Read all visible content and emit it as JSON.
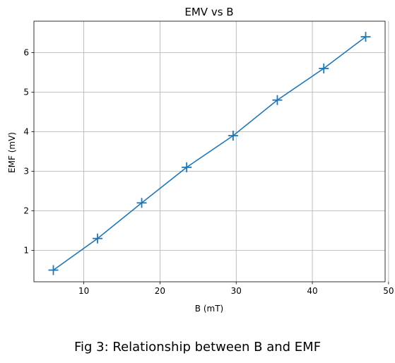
{
  "caption": "Fig 3: Relationship between B and EMF",
  "chart_data": {
    "type": "line",
    "title": "EMV vs B",
    "xlabel": "B (mT)",
    "ylabel": "EMF (mV)",
    "xlim": [
      3.45,
      49.55
    ],
    "ylim": [
      0.205,
      6.795
    ],
    "xticks": [
      10,
      20,
      30,
      40,
      50
    ],
    "yticks": [
      1,
      2,
      3,
      4,
      5,
      6
    ],
    "grid": true,
    "marker": "+",
    "color": "#1f77b4",
    "series": [
      {
        "x": [
          6.0,
          11.8,
          17.6,
          23.5,
          29.6,
          35.4,
          41.5,
          47.0
        ],
        "y": [
          0.5,
          1.3,
          2.2,
          3.1,
          3.9,
          4.8,
          5.6,
          6.4
        ]
      }
    ]
  }
}
